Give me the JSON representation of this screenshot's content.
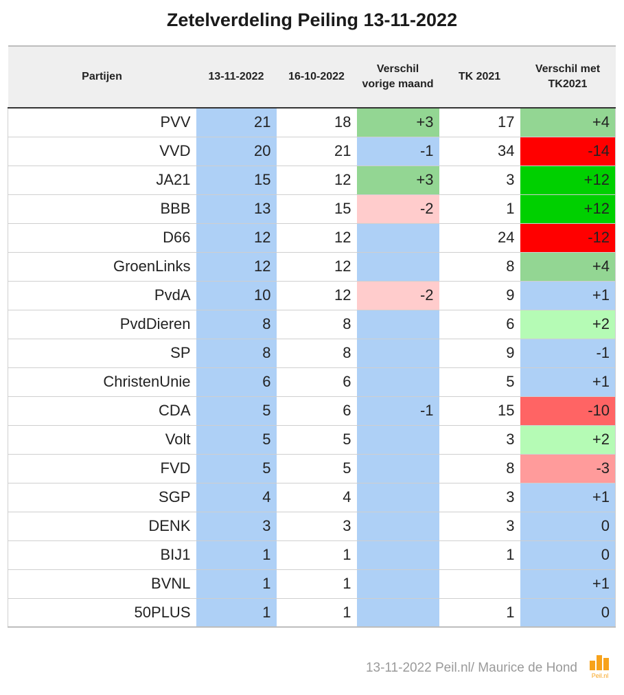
{
  "title": "Zetelverdeling Peiling 13-11-2022",
  "footer": "13-11-2022 Peil.nl/ Maurice de Hond",
  "logo_text": "Peil.nl",
  "colors": {
    "blue": "#aed0f6",
    "green": "#93d693",
    "green_bright": "#00d000",
    "green_light": "#b5fbb5",
    "red": "#ff0000",
    "red_medium": "#ff6464",
    "red_light": "#ff9b9b",
    "pink": "#ffcccc",
    "white": "#ffffff",
    "logo_orange": "#f7a21b"
  },
  "chart_data": {
    "type": "table",
    "title": "Zetelverdeling Peiling 13-11-2022",
    "columns": [
      "Partijen",
      "13-11-2022",
      "16-10-2022",
      "Verschil vorige maand",
      "TK 2021",
      "Verschil met TK2021"
    ],
    "rows": [
      {
        "party": "PVV",
        "now": "21",
        "prev": "18",
        "diff": "+3",
        "tk": "17",
        "tkdiff": "+4",
        "diff_color": "green",
        "tkdiff_color": "green"
      },
      {
        "party": "VVD",
        "now": "20",
        "prev": "21",
        "diff": "-1",
        "tk": "34",
        "tkdiff": "-14",
        "diff_color": "blue",
        "tkdiff_color": "red"
      },
      {
        "party": "JA21",
        "now": "15",
        "prev": "12",
        "diff": "+3",
        "tk": "3",
        "tkdiff": "+12",
        "diff_color": "green",
        "tkdiff_color": "green_bright"
      },
      {
        "party": "BBB",
        "now": "13",
        "prev": "15",
        "diff": "-2",
        "tk": "1",
        "tkdiff": "+12",
        "diff_color": "pink",
        "tkdiff_color": "green_bright"
      },
      {
        "party": "D66",
        "now": "12",
        "prev": "12",
        "diff": "",
        "tk": "24",
        "tkdiff": "-12",
        "diff_color": "blue",
        "tkdiff_color": "red"
      },
      {
        "party": "GroenLinks",
        "now": "12",
        "prev": "12",
        "diff": "",
        "tk": "8",
        "tkdiff": "+4",
        "diff_color": "blue",
        "tkdiff_color": "green"
      },
      {
        "party": "PvdA",
        "now": "10",
        "prev": "12",
        "diff": "-2",
        "tk": "9",
        "tkdiff": "+1",
        "diff_color": "pink",
        "tkdiff_color": "blue"
      },
      {
        "party": "PvdDieren",
        "now": "8",
        "prev": "8",
        "diff": "",
        "tk": "6",
        "tkdiff": "+2",
        "diff_color": "blue",
        "tkdiff_color": "green_light"
      },
      {
        "party": "SP",
        "now": "8",
        "prev": "8",
        "diff": "",
        "tk": "9",
        "tkdiff": "-1",
        "diff_color": "blue",
        "tkdiff_color": "blue"
      },
      {
        "party": "ChristenUnie",
        "now": "6",
        "prev": "6",
        "diff": "",
        "tk": "5",
        "tkdiff": "+1",
        "diff_color": "blue",
        "tkdiff_color": "blue"
      },
      {
        "party": "CDA",
        "now": "5",
        "prev": "6",
        "diff": "-1",
        "tk": "15",
        "tkdiff": "-10",
        "diff_color": "blue",
        "tkdiff_color": "red_medium"
      },
      {
        "party": "Volt",
        "now": "5",
        "prev": "5",
        "diff": "",
        "tk": "3",
        "tkdiff": "+2",
        "diff_color": "blue",
        "tkdiff_color": "green_light"
      },
      {
        "party": "FVD",
        "now": "5",
        "prev": "5",
        "diff": "",
        "tk": "8",
        "tkdiff": "-3",
        "diff_color": "blue",
        "tkdiff_color": "red_light"
      },
      {
        "party": "SGP",
        "now": "4",
        "prev": "4",
        "diff": "",
        "tk": "3",
        "tkdiff": "+1",
        "diff_color": "blue",
        "tkdiff_color": "blue"
      },
      {
        "party": "DENK",
        "now": "3",
        "prev": "3",
        "diff": "",
        "tk": "3",
        "tkdiff": "0",
        "diff_color": "blue",
        "tkdiff_color": "blue"
      },
      {
        "party": "BIJ1",
        "now": "1",
        "prev": "1",
        "diff": "",
        "tk": "1",
        "tkdiff": "0",
        "diff_color": "blue",
        "tkdiff_color": "blue"
      },
      {
        "party": "BVNL",
        "now": "1",
        "prev": "1",
        "diff": "",
        "tk": "",
        "tkdiff": "+1",
        "diff_color": "blue",
        "tkdiff_color": "blue"
      },
      {
        "party": "50PLUS",
        "now": "1",
        "prev": "1",
        "diff": "",
        "tk": "1",
        "tkdiff": "0",
        "diff_color": "blue",
        "tkdiff_color": "blue"
      }
    ]
  }
}
